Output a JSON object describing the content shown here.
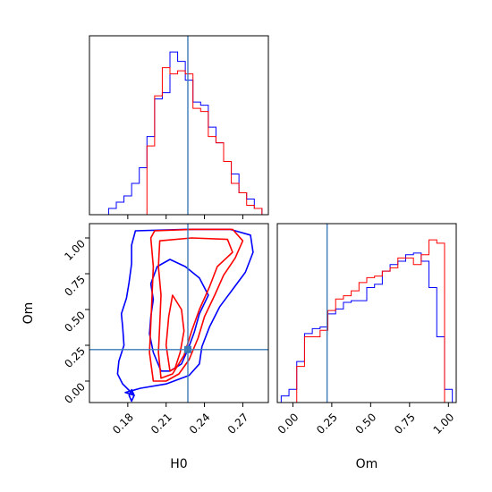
{
  "chart_data": {
    "type": "corner",
    "parameters": [
      "H0",
      "Om"
    ],
    "truth": {
      "H0": 0.227,
      "Om": 0.22
    },
    "series": [
      {
        "color": "#0000ff"
      },
      {
        "color": "#ff0000"
      }
    ],
    "panels": [
      {
        "id": "hist-H0",
        "type": "histogram",
        "xlim": [
          0.15,
          0.29
        ],
        "xticks": [
          0.18,
          0.21,
          0.24,
          0.27
        ],
        "bin_edges": [
          0.165,
          0.171,
          0.177,
          0.183,
          0.189,
          0.195,
          0.201,
          0.207,
          0.213,
          0.219,
          0.225,
          0.231,
          0.237,
          0.243,
          0.249,
          0.255,
          0.261,
          0.267,
          0.273,
          0.279,
          0.285
        ],
        "series": [
          {
            "color": "#0000ff",
            "counts": [
              2,
              4,
              6,
              10,
              15,
              25,
              37,
              39,
              52,
              49,
              43,
              36,
              35,
              28,
              23,
              17,
              13,
              7,
              5,
              2
            ]
          },
          {
            "color": "#ff0000",
            "counts": [
              0,
              0,
              0,
              0,
              0,
              22,
              38,
              47,
              45,
              46,
              45,
              34,
              33,
              25,
              23,
              17,
              10,
              7,
              3,
              2
            ]
          }
        ]
      },
      {
        "id": "hist-Om",
        "type": "histogram",
        "xlim": [
          -0.1,
          1.05
        ],
        "xticks": [
          0.0,
          0.25,
          0.5,
          0.75,
          1.0
        ],
        "xtick_labels": [
          "0.00",
          "0.25",
          "0.50",
          "0.75",
          "1.00"
        ],
        "xlabel": "Om",
        "bin_edges": [
          -0.075,
          -0.025,
          0.025,
          0.075,
          0.125,
          0.175,
          0.225,
          0.275,
          0.325,
          0.375,
          0.425,
          0.475,
          0.525,
          0.575,
          0.625,
          0.675,
          0.725,
          0.775,
          0.825,
          0.875,
          0.925,
          0.975,
          1.025
        ],
        "series": [
          {
            "color": "#0000ff",
            "counts": [
              4,
              8,
              25,
              42,
              45,
              46,
              54,
              57,
              61,
              62,
              62,
              70,
              72,
              80,
              84,
              86,
              90,
              91,
              86,
              70,
              40,
              8
            ]
          },
          {
            "color": "#ff0000",
            "counts": [
              0,
              0,
              22,
              40,
              40,
              44,
              56,
              63,
              65,
              68,
              73,
              76,
              77,
              80,
              82,
              88,
              88,
              84,
              90,
              99,
              97,
              0
            ]
          }
        ]
      },
      {
        "id": "contour-H0-Om",
        "type": "contour",
        "xlim": [
          0.15,
          0.29
        ],
        "ylim": [
          -0.15,
          1.1
        ],
        "xticks": [
          0.18,
          0.21,
          0.24,
          0.27
        ],
        "yticks": [
          0.0,
          0.25,
          0.5,
          0.75,
          1.0
        ],
        "ytick_labels": [
          "0.00",
          "0.25",
          "0.50",
          "0.75",
          "1.00"
        ],
        "xlabel": "H0",
        "ylabel": "Om",
        "contours": [
          {
            "color": "#0000ff",
            "points": [
              [
                0.185,
                -0.1
              ],
              [
                0.176,
                -0.02
              ],
              [
                0.172,
                0.05
              ],
              [
                0.173,
                0.14
              ],
              [
                0.177,
                0.25
              ],
              [
                0.176,
                0.38
              ],
              [
                0.175,
                0.47
              ],
              [
                0.179,
                0.58
              ],
              [
                0.181,
                0.69
              ],
              [
                0.183,
                0.82
              ],
              [
                0.183,
                0.95
              ],
              [
                0.186,
                1.05
              ],
              [
                0.225,
                1.06
              ],
              [
                0.26,
                1.06
              ],
              [
                0.276,
                1.02
              ],
              [
                0.278,
                0.9
              ],
              [
                0.272,
                0.76
              ],
              [
                0.262,
                0.64
              ],
              [
                0.252,
                0.52
              ],
              [
                0.244,
                0.38
              ],
              [
                0.238,
                0.24
              ],
              [
                0.236,
                0.12
              ],
              [
                0.228,
                0.04
              ],
              [
                0.21,
                -0.02
              ],
              [
                0.19,
                -0.05
              ],
              [
                0.178,
                -0.08
              ]
            ]
          },
          {
            "color": "#0000ff",
            "points": [
              [
                0.206,
                0.07
              ],
              [
                0.2,
                0.2
              ],
              [
                0.197,
                0.33
              ],
              [
                0.198,
                0.45
              ],
              [
                0.2,
                0.57
              ],
              [
                0.198,
                0.68
              ],
              [
                0.203,
                0.8
              ],
              [
                0.213,
                0.85
              ],
              [
                0.225,
                0.8
              ],
              [
                0.236,
                0.72
              ],
              [
                0.243,
                0.6
              ],
              [
                0.236,
                0.47
              ],
              [
                0.232,
                0.34
              ],
              [
                0.227,
                0.22
              ],
              [
                0.222,
                0.12
              ],
              [
                0.213,
                0.07
              ]
            ]
          },
          {
            "color": "#0000ff",
            "points": [
              [
                0.181,
                -0.1
              ],
              [
                0.183,
                -0.06
              ],
              [
                0.185,
                -0.1
              ],
              [
                0.183,
                -0.14
              ]
            ]
          },
          {
            "color": "#ff0000",
            "points": [
              [
                0.2,
                0.0
              ],
              [
                0.197,
                0.2
              ],
              [
                0.198,
                0.4
              ],
              [
                0.199,
                0.6
              ],
              [
                0.2,
                0.8
              ],
              [
                0.198,
                1.0
              ],
              [
                0.201,
                1.05
              ],
              [
                0.23,
                1.06
              ],
              [
                0.262,
                1.06
              ],
              [
                0.27,
                0.98
              ],
              [
                0.264,
                0.86
              ],
              [
                0.255,
                0.74
              ],
              [
                0.248,
                0.6
              ],
              [
                0.24,
                0.45
              ],
              [
                0.235,
                0.3
              ],
              [
                0.228,
                0.15
              ],
              [
                0.22,
                0.05
              ],
              [
                0.21,
                0.0
              ]
            ]
          },
          {
            "color": "#ff0000",
            "points": [
              [
                0.206,
                0.02
              ],
              [
                0.204,
                0.2
              ],
              [
                0.205,
                0.4
              ],
              [
                0.206,
                0.6
              ],
              [
                0.204,
                0.8
              ],
              [
                0.205,
                0.98
              ],
              [
                0.23,
                1.0
              ],
              [
                0.258,
                0.99
              ],
              [
                0.262,
                0.9
              ],
              [
                0.25,
                0.8
              ],
              [
                0.244,
                0.66
              ],
              [
                0.236,
                0.5
              ],
              [
                0.23,
                0.35
              ],
              [
                0.224,
                0.18
              ],
              [
                0.215,
                0.05
              ]
            ]
          },
          {
            "color": "#ff0000",
            "points": [
              [
                0.213,
                0.07
              ],
              [
                0.21,
                0.25
              ],
              [
                0.212,
                0.45
              ],
              [
                0.215,
                0.6
              ],
              [
                0.222,
                0.5
              ],
              [
                0.224,
                0.35
              ],
              [
                0.221,
                0.2
              ],
              [
                0.217,
                0.09
              ]
            ]
          }
        ]
      }
    ]
  }
}
